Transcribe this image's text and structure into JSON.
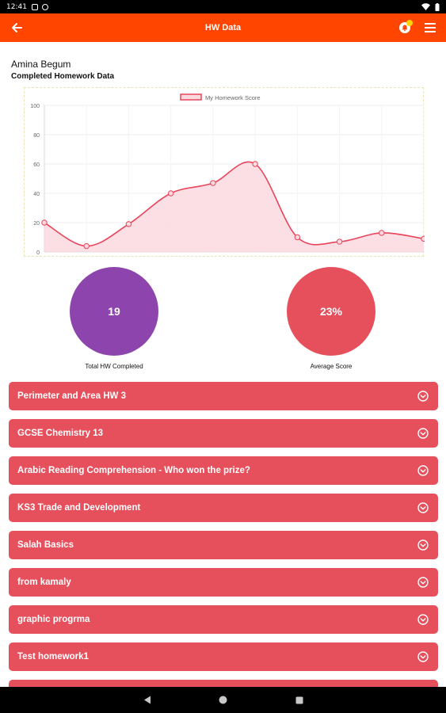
{
  "status_bar": {
    "time": "12:41"
  },
  "app_bar": {
    "title": "HW Data",
    "back_icon": "arrow-left-icon",
    "notification_icon": "notification-icon",
    "menu_icon": "hamburger-menu-icon",
    "color": "#ff4500"
  },
  "student": {
    "name": "Amina Begum"
  },
  "section_title": "Completed Homework Data",
  "chart_data": {
    "type": "area",
    "title": "",
    "xlabel": "",
    "ylabel": "",
    "ylim": [
      0,
      100
    ],
    "yticks": [
      "0",
      "20",
      "40",
      "60",
      "80",
      "100"
    ],
    "legend": "top-center",
    "grid": true,
    "series": [
      {
        "name": "My Homework Score",
        "color": "#e8445a",
        "fill": "#fcd9df",
        "values": [
          20,
          4,
          19,
          40,
          47,
          60,
          10,
          7,
          13,
          9
        ]
      }
    ]
  },
  "stats": [
    {
      "value": "19",
      "label": "Total HW Completed",
      "color": "#8e44ad"
    },
    {
      "value": "23%",
      "label": "Average Score",
      "color": "#e6505c"
    }
  ],
  "homework": [
    {
      "title": "Perimeter and Area HW 3"
    },
    {
      "title": "GCSE Chemistry 13"
    },
    {
      "title": "Arabic Reading Comprehension - Who won the prize?"
    },
    {
      "title": "KS3 Trade and Development"
    },
    {
      "title": "Salah Basics"
    },
    {
      "title": "from kamaly"
    },
    {
      "title": "graphic progrma"
    },
    {
      "title": "Test homework1"
    },
    {
      "title": ""
    }
  ],
  "nav_bar": {
    "back_icon": "nav-back-icon",
    "home_icon": "nav-home-icon",
    "recents_icon": "nav-recents-icon"
  }
}
